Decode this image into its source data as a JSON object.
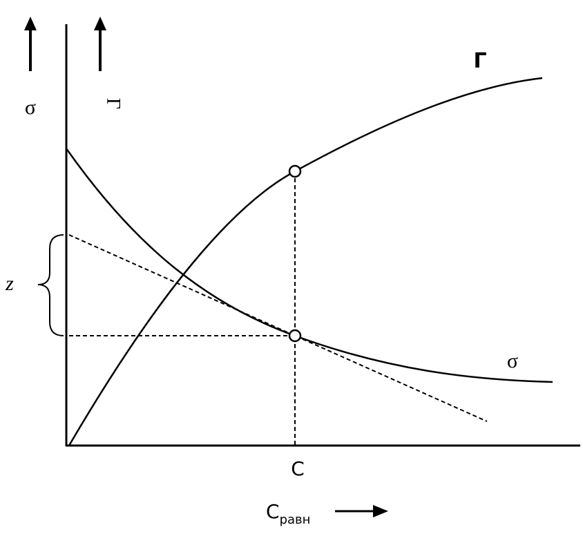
{
  "axis_labels": {
    "sigma": "σ",
    "gamma": "Γ"
  },
  "curve_labels": {
    "gamma": "Г",
    "sigma": "σ"
  },
  "bracket_label": "z",
  "point_label": "C",
  "x_axis_label": {
    "main": "C",
    "subscript": "равн"
  }
}
